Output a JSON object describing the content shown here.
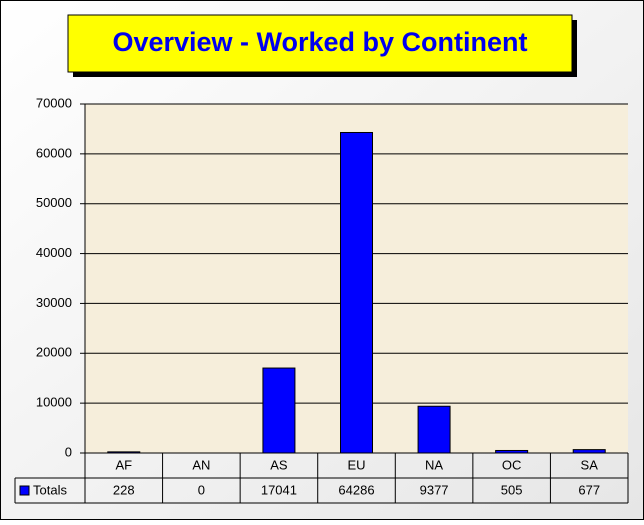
{
  "chart_data": {
    "type": "bar",
    "title": "Overview - Worked by Continent",
    "categories": [
      "AF",
      "AN",
      "AS",
      "EU",
      "NA",
      "OC",
      "SA"
    ],
    "series": [
      {
        "name": "Totals",
        "color": "#0000ff",
        "values": [
          228,
          0,
          17041,
          64286,
          9377,
          505,
          677
        ]
      }
    ],
    "ylim": [
      0,
      70000
    ],
    "yticks": [
      0,
      10000,
      20000,
      30000,
      40000,
      50000,
      60000,
      70000
    ],
    "grid": true
  }
}
